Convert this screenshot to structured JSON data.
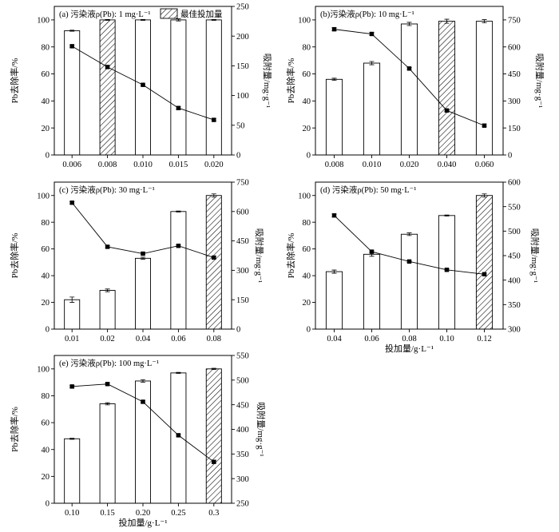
{
  "colors": {
    "bar_fill": "#ffffff",
    "ink": "#000000"
  },
  "chart_data": [
    {
      "type": "bar",
      "title": "(a) 污染液ρ(Pb): 1 mg·L⁻¹",
      "xlabel": "",
      "ylabel": "Pb去除率/%",
      "y2label": "吸附量/mg·g⁻¹",
      "categories": [
        "0.006",
        "0.008",
        "0.010",
        "0.015",
        "0.020"
      ],
      "ylim": [
        0,
        110
      ],
      "yticks": [
        0,
        20,
        40,
        60,
        80,
        100
      ],
      "y2lim": [
        0,
        250
      ],
      "y2ticks": [
        0,
        50,
        100,
        150,
        200,
        250
      ],
      "legend": {
        "label": "最佳投加量"
      },
      "series": [
        {
          "type": "bar",
          "values": [
            92,
            100,
            100,
            100,
            100
          ],
          "errors": [
            0.4,
            0.3,
            0.3,
            0.8,
            0.3
          ],
          "hatched": [
            false,
            true,
            false,
            false,
            false
          ]
        },
        {
          "type": "line",
          "values": [
            183,
            148,
            118,
            79,
            59
          ],
          "errors": [
            2,
            2,
            1.5,
            2.5,
            2
          ]
        }
      ]
    },
    {
      "type": "bar",
      "title": "(b)污染液ρ(Pb): 10 mg·L⁻¹",
      "xlabel": "",
      "ylabel": "Pb去除率/%",
      "y2label": "吸附量/mg·g⁻¹",
      "categories": [
        "0.008",
        "0.010",
        "0.020",
        "0.040",
        "0.060"
      ],
      "ylim": [
        0,
        110
      ],
      "yticks": [
        0,
        20,
        40,
        60,
        80,
        100
      ],
      "y2lim": [
        0,
        825
      ],
      "y2ticks": [
        0,
        150,
        300,
        450,
        600,
        750
      ],
      "series": [
        {
          "type": "bar",
          "values": [
            56,
            68,
            97,
            99,
            99
          ],
          "errors": [
            0.8,
            1.2,
            1.2,
            1.5,
            1.2
          ],
          "hatched": [
            false,
            false,
            false,
            true,
            false
          ]
        },
        {
          "type": "line",
          "values": [
            698,
            672,
            480,
            247,
            163
          ],
          "errors": [
            8,
            8,
            6,
            6,
            6
          ]
        }
      ]
    },
    {
      "type": "bar",
      "title": "(c) 污染液ρ(Pb): 30 mg·L⁻¹",
      "xlabel": "",
      "ylabel": "Pb去除率/%",
      "y2label": "吸附量/mg·g⁻¹",
      "categories": [
        "0.01",
        "0.02",
        "0.04",
        "0.06",
        "0.08"
      ],
      "ylim": [
        0,
        110
      ],
      "yticks": [
        0,
        20,
        40,
        60,
        80,
        100
      ],
      "y2lim": [
        0,
        750
      ],
      "y2ticks": [
        0,
        150,
        300,
        450,
        600,
        750
      ],
      "series": [
        {
          "type": "bar",
          "values": [
            22,
            29,
            53,
            88,
            100
          ],
          "errors": [
            2,
            1,
            0.8,
            0.4,
            1.2
          ],
          "hatched": [
            false,
            false,
            false,
            false,
            true
          ]
        },
        {
          "type": "line",
          "values": [
            645,
            420,
            385,
            425,
            365
          ],
          "errors": [
            6,
            5,
            5,
            5,
            5
          ]
        }
      ]
    },
    {
      "type": "bar",
      "title": "(d) 污染液ρ(Pb): 50 mg·L⁻¹",
      "xlabel": "投加量/g·L⁻¹",
      "ylabel": "Pb去除率/%",
      "y2label": "吸附量/mg·g⁻¹",
      "categories": [
        "0.04",
        "0.06",
        "0.08",
        "0.10",
        "0.12"
      ],
      "ylim": [
        0,
        110
      ],
      "yticks": [
        0,
        20,
        40,
        60,
        80,
        100
      ],
      "y2lim": [
        300,
        600
      ],
      "y2ticks": [
        300,
        350,
        400,
        450,
        500,
        550,
        600
      ],
      "series": [
        {
          "type": "bar",
          "values": [
            43,
            56,
            71,
            85,
            100
          ],
          "errors": [
            1.2,
            1.5,
            1,
            0.4,
            1.2
          ],
          "hatched": [
            false,
            false,
            false,
            false,
            true
          ]
        },
        {
          "type": "line",
          "values": [
            532,
            458,
            438,
            421,
            412
          ],
          "errors": [
            3,
            2,
            2,
            2,
            2
          ]
        }
      ]
    },
    {
      "type": "bar",
      "title": "(e) 污染液ρ(Pb): 100 mg·L⁻¹",
      "xlabel": "投加量/g·L⁻¹",
      "ylabel": "Pb去除率/%",
      "y2label": "吸附量/mg·g⁻¹",
      "categories": [
        "0.10",
        "0.15",
        "0.20",
        "0.25",
        "0.3"
      ],
      "ylim": [
        0,
        110
      ],
      "yticks": [
        0,
        20,
        40,
        60,
        80,
        100
      ],
      "y2lim": [
        250,
        550
      ],
      "y2ticks": [
        250,
        300,
        350,
        400,
        450,
        500,
        550
      ],
      "series": [
        {
          "type": "bar",
          "values": [
            48,
            74,
            91,
            97,
            100
          ],
          "errors": [
            0.4,
            0.8,
            1,
            0.4,
            0.5
          ],
          "hatched": [
            false,
            false,
            false,
            false,
            true
          ]
        },
        {
          "type": "line",
          "values": [
            487,
            492,
            456,
            388,
            334
          ],
          "errors": [
            2,
            2,
            2,
            2,
            2.5
          ]
        }
      ]
    }
  ]
}
